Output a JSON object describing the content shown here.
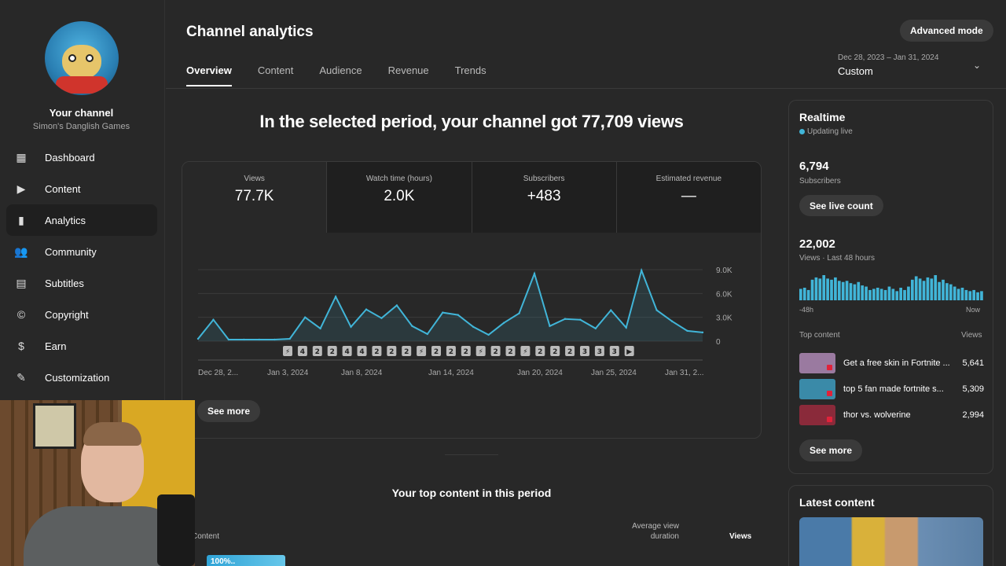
{
  "sidebar": {
    "channel_name": "Your channel",
    "channel_handle": "Simon's Danglish Games",
    "items": [
      {
        "label": "Dashboard",
        "icon": "dashboard-icon",
        "glyph": "▦"
      },
      {
        "label": "Content",
        "icon": "content-icon",
        "glyph": "▶"
      },
      {
        "label": "Analytics",
        "icon": "analytics-icon",
        "glyph": "▮"
      },
      {
        "label": "Community",
        "icon": "community-icon",
        "glyph": "👥"
      },
      {
        "label": "Subtitles",
        "icon": "subtitles-icon",
        "glyph": "▤"
      },
      {
        "label": "Copyright",
        "icon": "copyright-icon",
        "glyph": "©"
      },
      {
        "label": "Earn",
        "icon": "earn-icon",
        "glyph": "$"
      },
      {
        "label": "Customization",
        "icon": "customization-icon",
        "glyph": "✎"
      }
    ],
    "active_index": 2
  },
  "header": {
    "title": "Channel analytics",
    "advanced_mode": "Advanced mode",
    "tabs": [
      "Overview",
      "Content",
      "Audience",
      "Revenue",
      "Trends"
    ],
    "active_tab": 0,
    "date_range": "Dec 28, 2023 – Jan 31, 2024",
    "date_preset": "Custom"
  },
  "overview": {
    "headline": "In the selected period, your channel got 77,709 views",
    "metrics": [
      {
        "label": "Views",
        "value": "77.7K"
      },
      {
        "label": "Watch time (hours)",
        "value": "2.0K"
      },
      {
        "label": "Subscribers",
        "value": "+483"
      },
      {
        "label": "Estimated revenue",
        "value": "—"
      }
    ],
    "see_more": "See more"
  },
  "chart_data": {
    "type": "area",
    "x_tick_labels": [
      "Dec 28, 2...",
      "Jan 3, 2024",
      "Jan 8, 2024",
      "Jan 14, 2024",
      "Jan 20, 2024",
      "Jan 25, 2024",
      "Jan 31, 2..."
    ],
    "y_tick_labels": [
      "9.0K",
      "6.0K",
      "3.0K",
      "0"
    ],
    "ylim": [
      0,
      9000
    ],
    "values": [
      300,
      2700,
      200,
      200,
      200,
      200,
      300,
      3000,
      1600,
      5600,
      1800,
      4000,
      2900,
      4500,
      1900,
      900,
      3600,
      3300,
      1800,
      800,
      2300,
      3500,
      8500,
      1900,
      2800,
      2700,
      1600,
      3900,
      1700,
      8900,
      3900,
      2500,
      1300,
      1100
    ],
    "markers": [
      "⚡",
      "4",
      "2",
      "2",
      "4",
      "4",
      "2",
      "2",
      "2",
      "⚡",
      "2",
      "2",
      "2",
      "⚡",
      "2",
      "2",
      "⚡",
      "2",
      "2",
      "2",
      "3",
      "3",
      "3",
      "▶"
    ],
    "color": "#41b5d8"
  },
  "top_content": {
    "title": "Your top content in this period",
    "col_content": "Content",
    "col_avg": "Average view duration",
    "col_views": "Views",
    "first_row_badge": "100%.."
  },
  "realtime": {
    "title": "Realtime",
    "status": "Updating live",
    "subscribers": "6,794",
    "subscribers_label": "Subscribers",
    "live_count_button": "See live count",
    "views": "22,002",
    "views_label": "Views · Last 48 hours",
    "bars": [
      10,
      11,
      9,
      18,
      20,
      19,
      22,
      19,
      18,
      20,
      17,
      16,
      17,
      15,
      14,
      16,
      13,
      12,
      9,
      10,
      11,
      10,
      9,
      12,
      10,
      8,
      11,
      9,
      12,
      18,
      21,
      19,
      17,
      20,
      19,
      22,
      16,
      18,
      15,
      14,
      12,
      10,
      11,
      9,
      8,
      9,
      7,
      8
    ],
    "axis_left": "-48h",
    "axis_right": "Now",
    "top_content_header": "Top content",
    "views_header": "Views",
    "items": [
      {
        "title": "Get a free skin in Fortnite ...",
        "views": "5,641",
        "color": "#9a7aa0"
      },
      {
        "title": "top 5 fan made fortnite s...",
        "views": "5,309",
        "color": "#3a8aa8"
      },
      {
        "title": "thor vs. wolverine",
        "views": "2,994",
        "color": "#8a2a3a"
      }
    ],
    "see_more": "See more"
  },
  "latest": {
    "title": "Latest content"
  }
}
